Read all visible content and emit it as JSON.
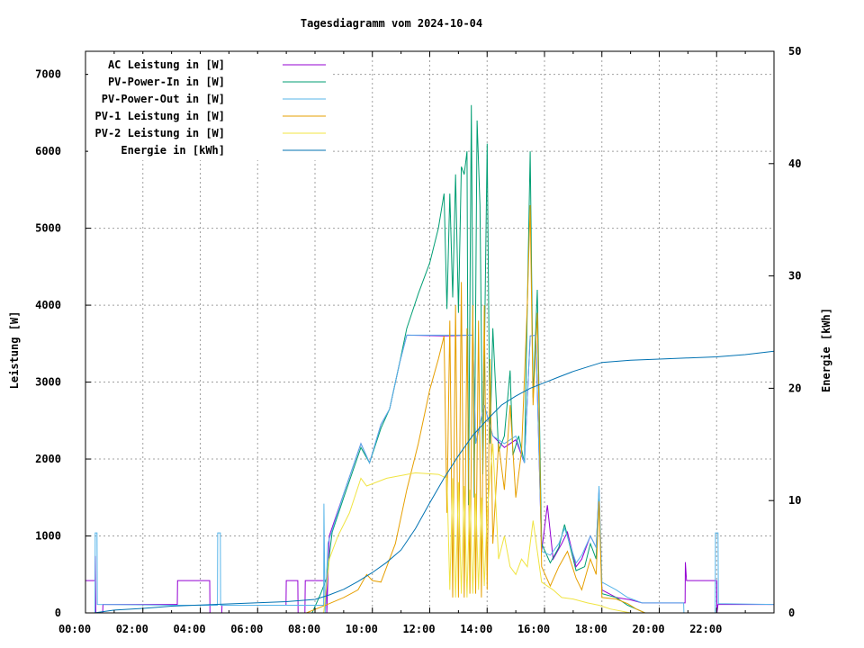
{
  "chart_data": {
    "type": "line",
    "title": "Tagesdiagramm vom 2024-10-04",
    "xlabel": "",
    "ylabel": "Leistung [W]",
    "y2label": "Energie [kWh]",
    "xlim": [
      0,
      24
    ],
    "ylim": [
      0,
      7300
    ],
    "y2lim": [
      0,
      50
    ],
    "grid": true,
    "legend_position": "top-left",
    "x_ticks": [
      {
        "value": 0,
        "label": "00:00"
      },
      {
        "value": 2,
        "label": "02:00"
      },
      {
        "value": 4,
        "label": "04:00"
      },
      {
        "value": 6,
        "label": "06:00"
      },
      {
        "value": 8,
        "label": "08:00"
      },
      {
        "value": 10,
        "label": "10:00"
      },
      {
        "value": 12,
        "label": "12:00"
      },
      {
        "value": 14,
        "label": "14:00"
      },
      {
        "value": 16,
        "label": "16:00"
      },
      {
        "value": 18,
        "label": "18:00"
      },
      {
        "value": 20,
        "label": "20:00"
      },
      {
        "value": 22,
        "label": "22:00"
      }
    ],
    "y_ticks": [
      0,
      1000,
      2000,
      3000,
      4000,
      5000,
      6000,
      7000
    ],
    "y2_ticks": [
      0,
      10,
      20,
      30,
      40,
      50
    ],
    "series": [
      {
        "name": "AC Leistung in [W]",
        "axis": "y1",
        "color": "#9400d3",
        "points": [
          [
            0,
            420
          ],
          [
            0.33,
            420
          ],
          [
            0.34,
            740
          ],
          [
            0.36,
            0
          ],
          [
            0.6,
            0
          ],
          [
            0.61,
            110
          ],
          [
            3.2,
            110
          ],
          [
            3.21,
            420
          ],
          [
            4.33,
            420
          ],
          [
            4.34,
            0
          ],
          [
            4.75,
            0
          ],
          [
            4.76,
            100
          ],
          [
            6.99,
            100
          ],
          [
            7.0,
            420
          ],
          [
            7.4,
            420
          ],
          [
            7.41,
            0
          ],
          [
            7.65,
            0
          ],
          [
            7.66,
            420
          ],
          [
            8.4,
            420
          ],
          [
            8.41,
            0
          ],
          [
            8.5,
            1000
          ],
          [
            9.0,
            1550
          ],
          [
            9.6,
            2200
          ],
          [
            9.9,
            1950
          ],
          [
            10.3,
            2450
          ],
          [
            10.6,
            2650
          ],
          [
            10.95,
            3250
          ],
          [
            11.2,
            3610
          ],
          [
            12.5,
            3600
          ],
          [
            13.5,
            3610
          ],
          [
            13.6,
            2200
          ],
          [
            13.9,
            2700
          ],
          [
            14.2,
            2300
          ],
          [
            14.6,
            2150
          ],
          [
            15.0,
            2250
          ],
          [
            15.3,
            1950
          ],
          [
            15.5,
            3600
          ],
          [
            15.7,
            3610
          ],
          [
            15.9,
            800
          ],
          [
            16.1,
            1400
          ],
          [
            16.3,
            700
          ],
          [
            16.6,
            900
          ],
          [
            16.8,
            1050
          ],
          [
            17.1,
            600
          ],
          [
            17.3,
            700
          ],
          [
            17.6,
            1000
          ],
          [
            17.8,
            850
          ],
          [
            17.9,
            1600
          ],
          [
            18.0,
            300
          ],
          [
            18.5,
            200
          ],
          [
            19.0,
            170
          ],
          [
            19.4,
            130
          ],
          [
            20.9,
            130
          ],
          [
            20.91,
            660
          ],
          [
            20.95,
            420
          ],
          [
            22.0,
            420
          ],
          [
            22.01,
            0
          ],
          [
            22.05,
            110
          ],
          [
            24,
            110
          ]
        ]
      },
      {
        "name": "PV-Power-In in [W]",
        "axis": "y1",
        "color": "#009e73",
        "points": [
          [
            0,
            0
          ],
          [
            7.9,
            0
          ],
          [
            8.2,
            250
          ],
          [
            8.4,
            450
          ],
          [
            8.6,
            1050
          ],
          [
            9.0,
            1500
          ],
          [
            9.6,
            2150
          ],
          [
            9.9,
            1950
          ],
          [
            10.3,
            2400
          ],
          [
            10.6,
            2650
          ],
          [
            10.95,
            3250
          ],
          [
            11.2,
            3700
          ],
          [
            11.6,
            4150
          ],
          [
            12.0,
            4550
          ],
          [
            12.3,
            5000
          ],
          [
            12.5,
            5450
          ],
          [
            12.6,
            3950
          ],
          [
            12.7,
            5450
          ],
          [
            12.8,
            4100
          ],
          [
            12.9,
            5700
          ],
          [
            13.0,
            3900
          ],
          [
            13.1,
            5800
          ],
          [
            13.2,
            5700
          ],
          [
            13.3,
            6000
          ],
          [
            13.35,
            1400
          ],
          [
            13.45,
            6600
          ],
          [
            13.55,
            1500
          ],
          [
            13.65,
            6400
          ],
          [
            13.75,
            5300
          ],
          [
            13.85,
            1800
          ],
          [
            14.0,
            6100
          ],
          [
            14.1,
            2200
          ],
          [
            14.2,
            3700
          ],
          [
            14.4,
            2100
          ],
          [
            14.6,
            2300
          ],
          [
            14.8,
            3150
          ],
          [
            14.9,
            2050
          ],
          [
            15.1,
            2300
          ],
          [
            15.3,
            1950
          ],
          [
            15.5,
            6000
          ],
          [
            15.6,
            2800
          ],
          [
            15.75,
            4200
          ],
          [
            15.9,
            900
          ],
          [
            16.2,
            650
          ],
          [
            16.5,
            850
          ],
          [
            16.7,
            1150
          ],
          [
            17.1,
            550
          ],
          [
            17.4,
            600
          ],
          [
            17.6,
            900
          ],
          [
            17.8,
            700
          ],
          [
            17.9,
            1550
          ],
          [
            18.0,
            250
          ],
          [
            18.5,
            200
          ],
          [
            18.9,
            100
          ],
          [
            19.2,
            50
          ],
          [
            19.5,
            0
          ],
          [
            24,
            0
          ]
        ]
      },
      {
        "name": "PV-Power-Out in [W]",
        "axis": "y1",
        "color": "#56b4e9",
        "points": [
          [
            0,
            0
          ],
          [
            0.33,
            0
          ],
          [
            0.34,
            1040
          ],
          [
            0.4,
            1040
          ],
          [
            0.41,
            110
          ],
          [
            3.2,
            100
          ],
          [
            4.6,
            100
          ],
          [
            4.61,
            1040
          ],
          [
            4.7,
            1040
          ],
          [
            4.71,
            100
          ],
          [
            8.3,
            100
          ],
          [
            8.31,
            1420
          ],
          [
            8.35,
            0
          ],
          [
            8.45,
            900
          ],
          [
            9.0,
            1550
          ],
          [
            9.6,
            2200
          ],
          [
            9.9,
            1950
          ],
          [
            10.3,
            2450
          ],
          [
            10.6,
            2650
          ],
          [
            10.95,
            3250
          ],
          [
            11.2,
            3610
          ],
          [
            12.5,
            3610
          ],
          [
            13.5,
            3610
          ],
          [
            13.6,
            2200
          ],
          [
            13.9,
            2700
          ],
          [
            14.2,
            2300
          ],
          [
            14.6,
            2200
          ],
          [
            15.0,
            2300
          ],
          [
            15.3,
            1950
          ],
          [
            15.5,
            3600
          ],
          [
            15.7,
            3610
          ],
          [
            15.9,
            800
          ],
          [
            16.2,
            750
          ],
          [
            16.5,
            900
          ],
          [
            16.7,
            1100
          ],
          [
            17.1,
            650
          ],
          [
            17.3,
            750
          ],
          [
            17.6,
            1000
          ],
          [
            17.8,
            850
          ],
          [
            17.9,
            1650
          ],
          [
            18.0,
            400
          ],
          [
            18.5,
            300
          ],
          [
            18.9,
            200
          ],
          [
            19.4,
            130
          ],
          [
            20.85,
            130
          ],
          [
            20.86,
            0
          ],
          [
            21.95,
            0
          ],
          [
            21.96,
            1040
          ],
          [
            22.05,
            1040
          ],
          [
            22.06,
            120
          ],
          [
            24,
            110
          ]
        ]
      },
      {
        "name": "PV-1 Leistung in [W]",
        "axis": "y1",
        "color": "#e69f00",
        "points": [
          [
            0,
            0
          ],
          [
            7.7,
            0
          ],
          [
            8.5,
            120
          ],
          [
            9.0,
            200
          ],
          [
            9.5,
            300
          ],
          [
            9.8,
            500
          ],
          [
            10.0,
            420
          ],
          [
            10.3,
            400
          ],
          [
            10.8,
            900
          ],
          [
            11.2,
            1600
          ],
          [
            11.6,
            2200
          ],
          [
            12.0,
            2900
          ],
          [
            12.3,
            3300
          ],
          [
            12.5,
            3600
          ],
          [
            12.6,
            1300
          ],
          [
            12.7,
            3800
          ],
          [
            12.8,
            200
          ],
          [
            12.9,
            4000
          ],
          [
            13.0,
            200
          ],
          [
            13.1,
            4300
          ],
          [
            13.2,
            200
          ],
          [
            13.3,
            3700
          ],
          [
            13.4,
            250
          ],
          [
            13.5,
            4000
          ],
          [
            13.6,
            250
          ],
          [
            13.7,
            3800
          ],
          [
            13.8,
            200
          ],
          [
            13.9,
            4000
          ],
          [
            14.0,
            300
          ],
          [
            14.1,
            3300
          ],
          [
            14.2,
            900
          ],
          [
            14.4,
            2200
          ],
          [
            14.6,
            1600
          ],
          [
            14.8,
            2700
          ],
          [
            15.0,
            1500
          ],
          [
            15.2,
            2100
          ],
          [
            15.4,
            4000
          ],
          [
            15.5,
            5300
          ],
          [
            15.6,
            2700
          ],
          [
            15.75,
            3900
          ],
          [
            15.9,
            600
          ],
          [
            16.2,
            350
          ],
          [
            16.5,
            600
          ],
          [
            16.8,
            800
          ],
          [
            17.1,
            450
          ],
          [
            17.3,
            300
          ],
          [
            17.6,
            700
          ],
          [
            17.8,
            500
          ],
          [
            17.9,
            1450
          ],
          [
            18.0,
            200
          ],
          [
            18.5,
            180
          ],
          [
            18.9,
            120
          ],
          [
            19.2,
            50
          ],
          [
            19.5,
            0
          ],
          [
            24,
            0
          ]
        ]
      },
      {
        "name": "PV-2 Leistung in [W]",
        "axis": "y1",
        "color": "#f0e442",
        "points": [
          [
            0,
            0
          ],
          [
            8.3,
            0
          ],
          [
            8.5,
            700
          ],
          [
            8.8,
            1000
          ],
          [
            9.2,
            1300
          ],
          [
            9.6,
            1750
          ],
          [
            9.8,
            1650
          ],
          [
            10.5,
            1750
          ],
          [
            11.5,
            1820
          ],
          [
            12.3,
            1800
          ],
          [
            12.6,
            1750
          ],
          [
            12.7,
            300
          ],
          [
            12.8,
            1750
          ],
          [
            12.9,
            200
          ],
          [
            13.0,
            1700
          ],
          [
            13.1,
            250
          ],
          [
            13.2,
            1650
          ],
          [
            13.3,
            200
          ],
          [
            13.4,
            1600
          ],
          [
            13.5,
            250
          ],
          [
            13.6,
            1550
          ],
          [
            13.7,
            300
          ],
          [
            13.8,
            1500
          ],
          [
            13.9,
            350
          ],
          [
            14.0,
            1300
          ],
          [
            14.2,
            2200
          ],
          [
            14.4,
            700
          ],
          [
            14.6,
            1000
          ],
          [
            14.8,
            600
          ],
          [
            15.0,
            500
          ],
          [
            15.2,
            700
          ],
          [
            15.4,
            600
          ],
          [
            15.6,
            1200
          ],
          [
            15.9,
            400
          ],
          [
            16.3,
            300
          ],
          [
            16.6,
            200
          ],
          [
            17.0,
            180
          ],
          [
            17.5,
            130
          ],
          [
            17.9,
            100
          ],
          [
            18.3,
            50
          ],
          [
            19.0,
            0
          ],
          [
            24,
            0
          ]
        ]
      },
      {
        "name": "Energie in [kWh]",
        "axis": "y2",
        "color": "#0072b2",
        "points": [
          [
            0.3,
            0
          ],
          [
            1,
            0.25
          ],
          [
            2,
            0.4
          ],
          [
            3,
            0.6
          ],
          [
            4,
            0.7
          ],
          [
            5,
            0.8
          ],
          [
            6,
            0.9
          ],
          [
            7,
            1.0
          ],
          [
            8,
            1.2
          ],
          [
            8.5,
            1.6
          ],
          [
            9,
            2.1
          ],
          [
            9.5,
            2.8
          ],
          [
            10,
            3.6
          ],
          [
            10.5,
            4.5
          ],
          [
            11,
            5.6
          ],
          [
            11.5,
            7.5
          ],
          [
            12,
            9.8
          ],
          [
            12.5,
            12.0
          ],
          [
            13,
            14.0
          ],
          [
            13.5,
            15.8
          ],
          [
            14,
            17.2
          ],
          [
            14.5,
            18.5
          ],
          [
            15,
            19.3
          ],
          [
            15.5,
            20.0
          ],
          [
            16,
            20.5
          ],
          [
            16.5,
            21.0
          ],
          [
            17,
            21.5
          ],
          [
            17.5,
            21.9
          ],
          [
            18,
            22.3
          ],
          [
            19,
            22.5
          ],
          [
            20,
            22.6
          ],
          [
            21,
            22.7
          ],
          [
            22,
            22.8
          ],
          [
            23,
            23.0
          ],
          [
            24,
            23.3
          ]
        ]
      }
    ]
  }
}
